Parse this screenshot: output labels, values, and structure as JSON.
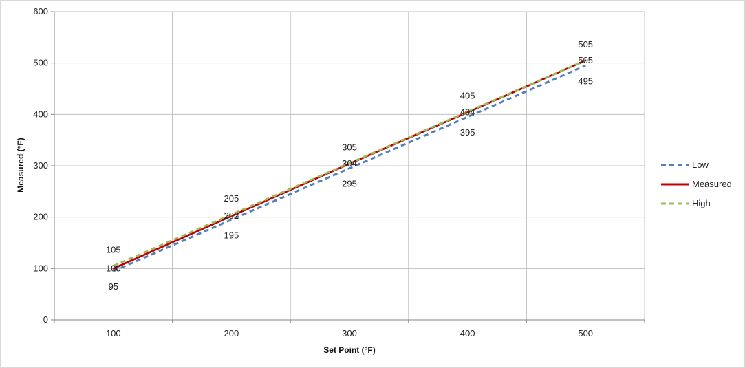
{
  "chart_data": {
    "type": "line",
    "xlabel": "Set Point (°F)",
    "ylabel": "Measured (°F)",
    "x": [
      100,
      200,
      300,
      400,
      500
    ],
    "xlim": [
      50,
      550
    ],
    "ylim": [
      0,
      600
    ],
    "xticks": [
      100,
      200,
      300,
      400,
      500
    ],
    "yticks": [
      0,
      100,
      200,
      300,
      400,
      500,
      600
    ],
    "grid": true,
    "legend_position": "right",
    "series": [
      {
        "name": "Low",
        "values": [
          95,
          195,
          295,
          395,
          495
        ],
        "color": "#4f81bd",
        "dash": "dashed"
      },
      {
        "name": "Measured",
        "values": [
          100,
          202,
          304,
          404,
          505
        ],
        "color": "#c00000",
        "dash": "solid"
      },
      {
        "name": "High",
        "values": [
          105,
          205,
          305,
          405,
          505
        ],
        "color": "#9bbb59",
        "dash": "dashed"
      }
    ]
  }
}
